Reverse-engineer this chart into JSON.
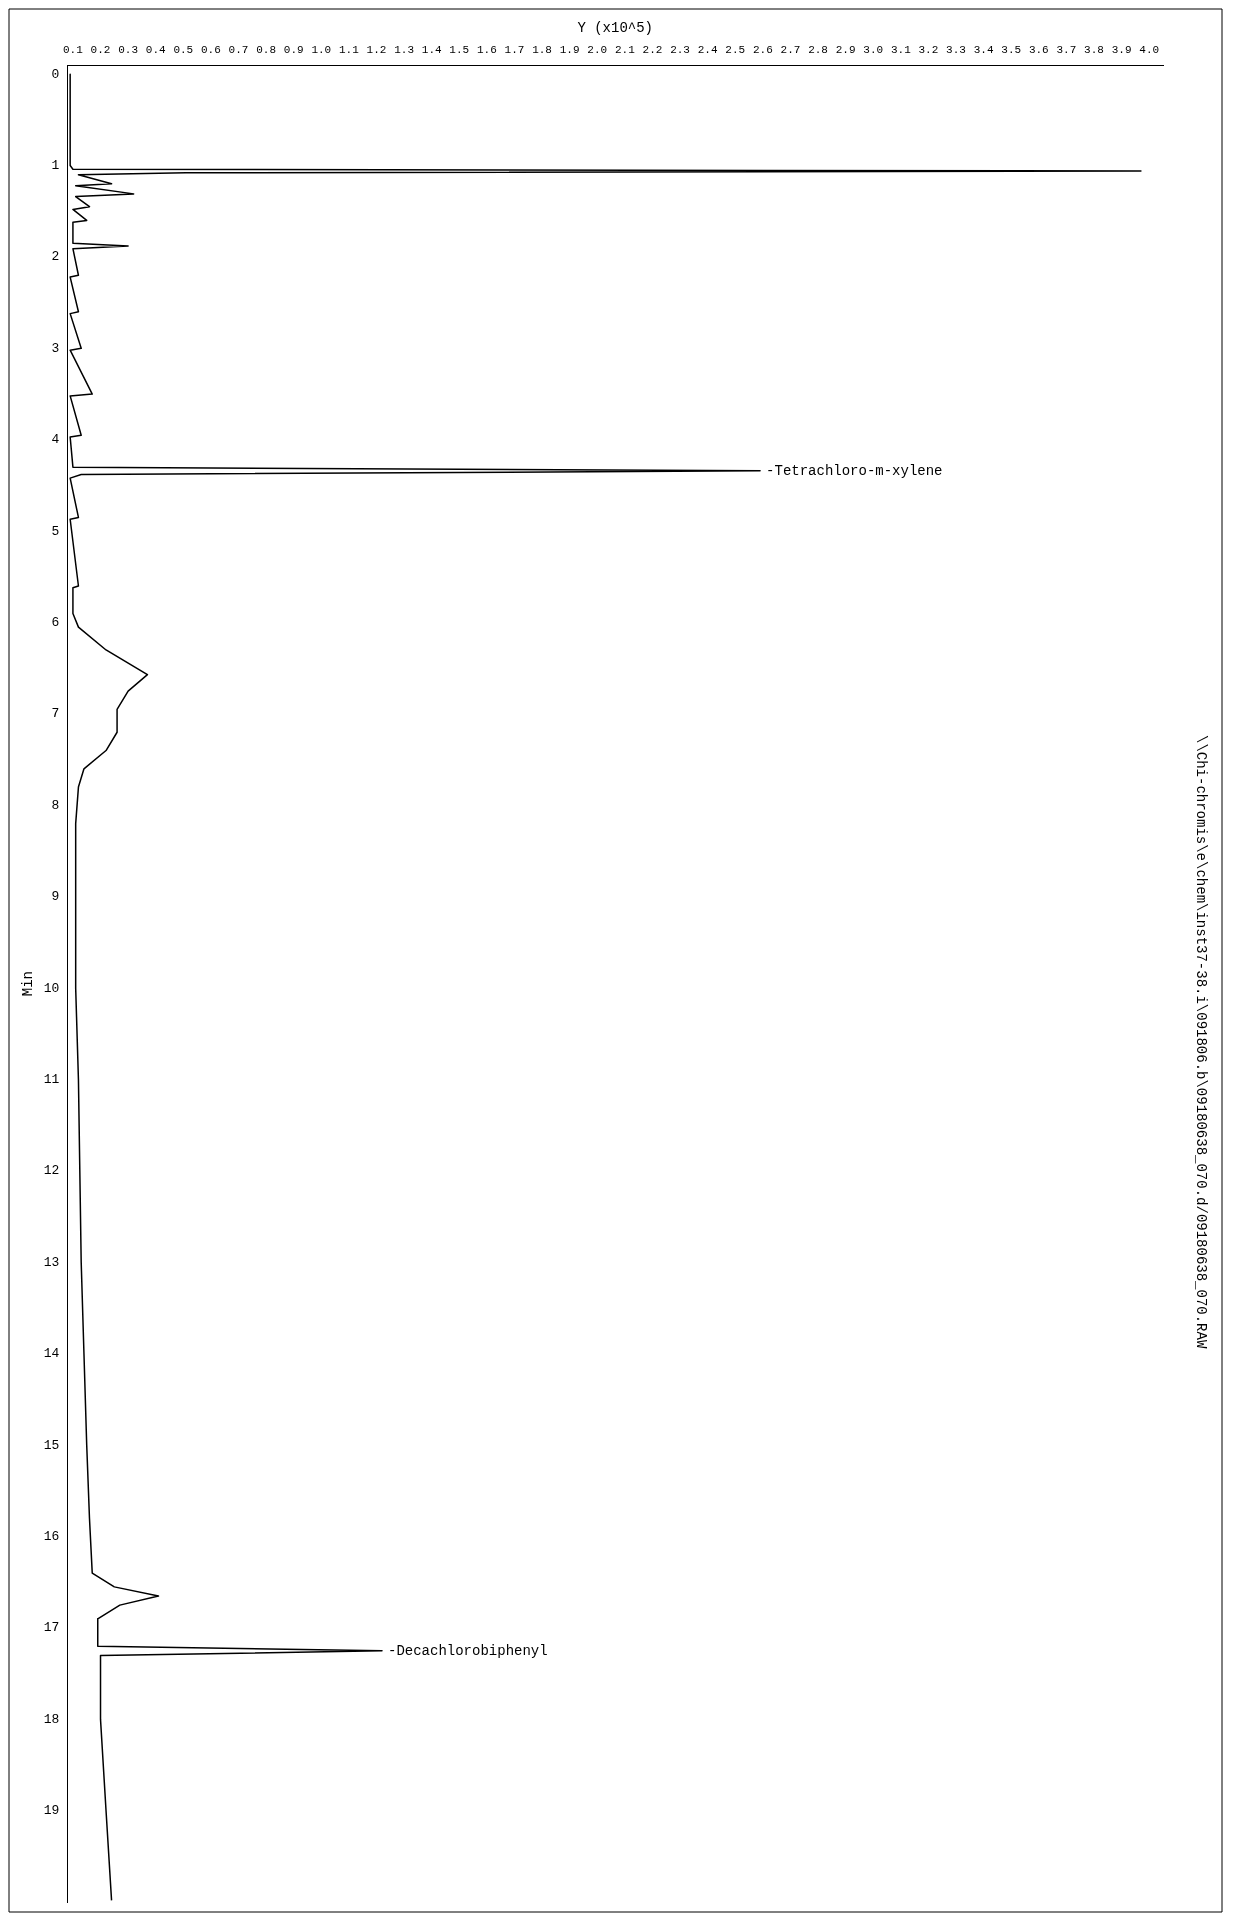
{
  "chart_data": {
    "type": "line",
    "orientation": "horizontal",
    "xlabel": "Y (x10^5)",
    "ylabel": "Min",
    "x": [
      0,
      1.0,
      1.04,
      1.06,
      1.08,
      1.1,
      1.2,
      1.22,
      1.31,
      1.34,
      1.45,
      1.48,
      1.6,
      1.62,
      1.85,
      1.88,
      1.91,
      2.2,
      2.22,
      2.6,
      2.62,
      3.0,
      3.02,
      3.5,
      3.52,
      3.95,
      3.97,
      4.3,
      4.34,
      4.38,
      4.42,
      4.85,
      4.87,
      5.6,
      5.62,
      5.9,
      6.05,
      6.3,
      6.57,
      6.75,
      6.95,
      7.2,
      7.4,
      7.6,
      7.8,
      8.2,
      9.0,
      10,
      11,
      13,
      14,
      15,
      15.8,
      16.4,
      16.55,
      16.65,
      16.75,
      16.9,
      17.2,
      17.25,
      17.3,
      18,
      19,
      19.98
    ],
    "series": [
      {
        "color": "#000000",
        "values": [
          0.09,
          0.09,
          0.1,
          3.97,
          0.51,
          0.12,
          0.24,
          0.11,
          0.32,
          0.11,
          0.16,
          0.1,
          0.15,
          0.1,
          0.1,
          0.3,
          0.1,
          0.12,
          0.09,
          0.12,
          0.09,
          0.13,
          0.09,
          0.17,
          0.09,
          0.13,
          0.09,
          0.1,
          2.59,
          0.13,
          0.09,
          0.12,
          0.09,
          0.12,
          0.1,
          0.1,
          0.12,
          0.22,
          0.37,
          0.3,
          0.26,
          0.26,
          0.22,
          0.14,
          0.12,
          0.11,
          0.11,
          0.11,
          0.12,
          0.13,
          0.14,
          0.15,
          0.16,
          0.17,
          0.25,
          0.41,
          0.27,
          0.19,
          0.19,
          1.22,
          0.2,
          0.2,
          0.22,
          0.24
        ]
      }
    ],
    "xlim": [
      0.08,
      4.05
    ],
    "xticks": [
      0.1,
      0.2,
      0.3,
      0.4,
      0.5,
      0.6,
      0.7,
      0.8,
      0.9,
      {
        "value": 1,
        "label": "1.0"
      },
      1.1,
      1.2,
      1.3,
      1.4,
      1.5,
      1.6,
      1.7,
      1.8,
      1.9,
      {
        "value": 2,
        "label": "2.0"
      },
      2.1,
      2.2,
      2.3,
      2.4,
      2.5,
      2.6,
      2.7,
      2.8,
      2.9,
      {
        "value": 3,
        "label": "3.0"
      },
      3.1,
      3.2,
      3.3,
      3.4,
      3.5,
      3.6,
      3.7,
      3.8,
      3.9,
      {
        "value": 4,
        "label": "4.0"
      }
    ],
    "ylim": [
      20.0,
      -0.1
    ],
    "yticks": [
      0,
      1,
      2,
      3,
      4,
      5,
      6,
      7,
      8,
      9,
      10,
      11,
      12,
      13,
      14,
      15,
      16,
      17,
      18,
      19
    ],
    "grid": false,
    "legend": false,
    "marker": "none",
    "line_style": "solid",
    "annotations": [
      {
        "text": "-Tetrachloro-m-xylene",
        "x": 2.59,
        "y": 4.34
      },
      {
        "text": "-Decachlorobiphenyl",
        "x": 1.22,
        "y": 17.25
      },
      "\\\\Chi-chromis\\e\\chem\\inst37-38.i\\091806.b\\09180638_070.d/09180638_070.RAW"
    ]
  }
}
